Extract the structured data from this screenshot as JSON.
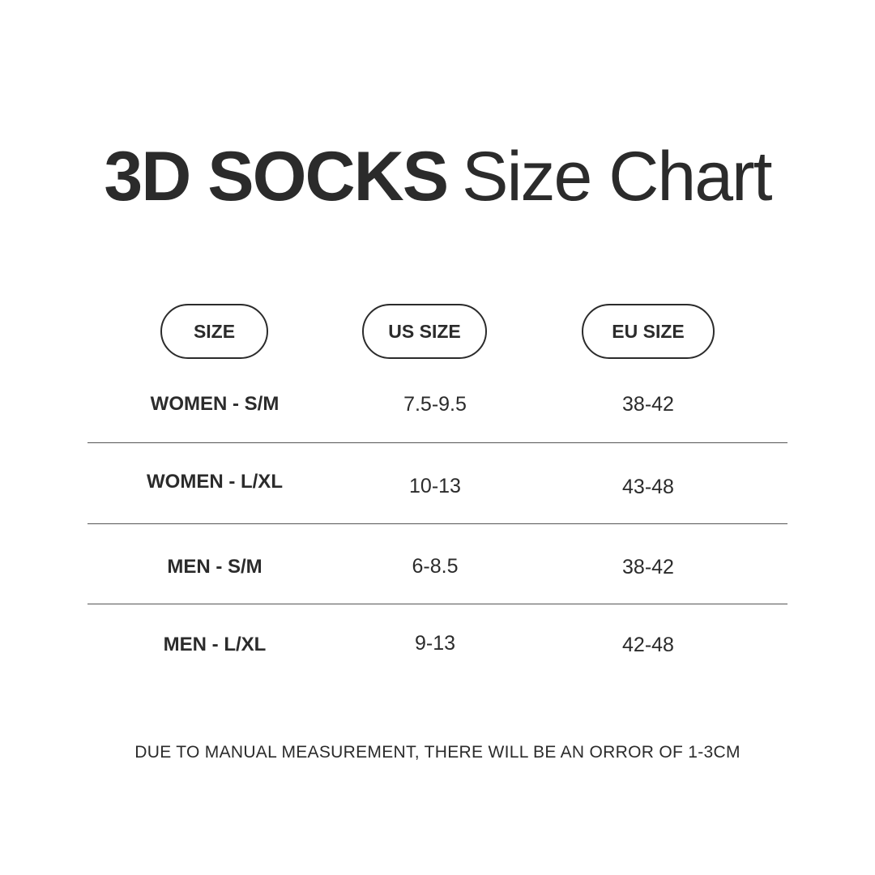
{
  "title": {
    "bold": "3D  SOCKS",
    "regular": "Size Chart"
  },
  "headers": [
    "SIZE",
    "US SIZE",
    "EU SIZE"
  ],
  "rows": [
    {
      "size": "WOMEN - S/M",
      "us": "7.5-9.5",
      "eu": "38-42"
    },
    {
      "size": "WOMEN - L/XL",
      "us": "10-13",
      "eu": "43-48"
    },
    {
      "size": "MEN - S/M",
      "us": "6-8.5",
      "eu": "38-42"
    },
    {
      "size": "MEN - L/XL",
      "us": "9-13",
      "eu": "42-48"
    }
  ],
  "note": "DUE TO MANUAL MEASUREMENT, THERE WILL BE AN ORROR OF 1-3CM",
  "colors": {
    "text": "#2b2b2b",
    "background": "#ffffff"
  }
}
